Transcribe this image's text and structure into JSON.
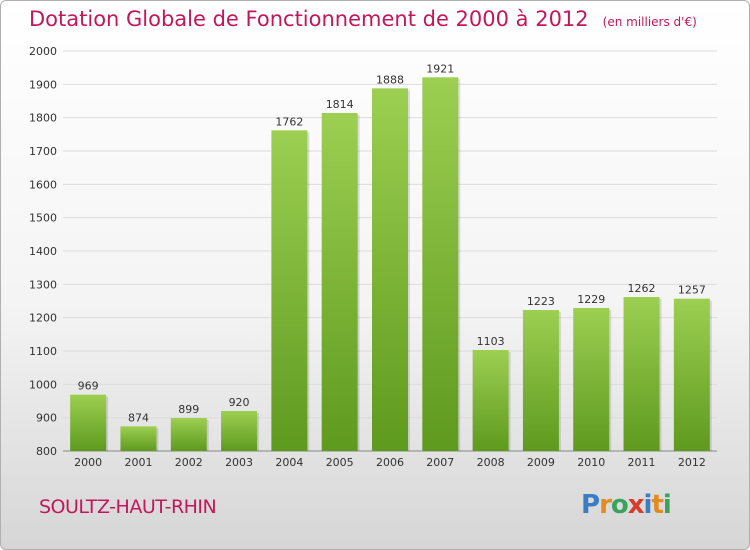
{
  "chart_data": {
    "type": "bar",
    "title": "Dotation Globale de Fonctionnement de 2000 à 2012",
    "unit": "(en milliers d'€)",
    "categories": [
      "2000",
      "2001",
      "2002",
      "2003",
      "2004",
      "2005",
      "2006",
      "2007",
      "2008",
      "2009",
      "2010",
      "2011",
      "2012"
    ],
    "values": [
      969,
      874,
      899,
      920,
      1762,
      1814,
      1888,
      1921,
      1103,
      1223,
      1229,
      1262,
      1257
    ],
    "ylim": [
      800,
      2000
    ],
    "yticks": [
      800,
      900,
      1000,
      1100,
      1200,
      1300,
      1400,
      1500,
      1600,
      1700,
      1800,
      1900,
      2000
    ],
    "xlabel": "",
    "ylabel": "",
    "grid": true
  },
  "colors": {
    "bar_top": "#9ccf52",
    "bar_bottom": "#5e9a1e",
    "title": "#c2185b"
  },
  "town": "SOULTZ-HAUT-RHIN",
  "logo": {
    "text": "Proxiti"
  }
}
